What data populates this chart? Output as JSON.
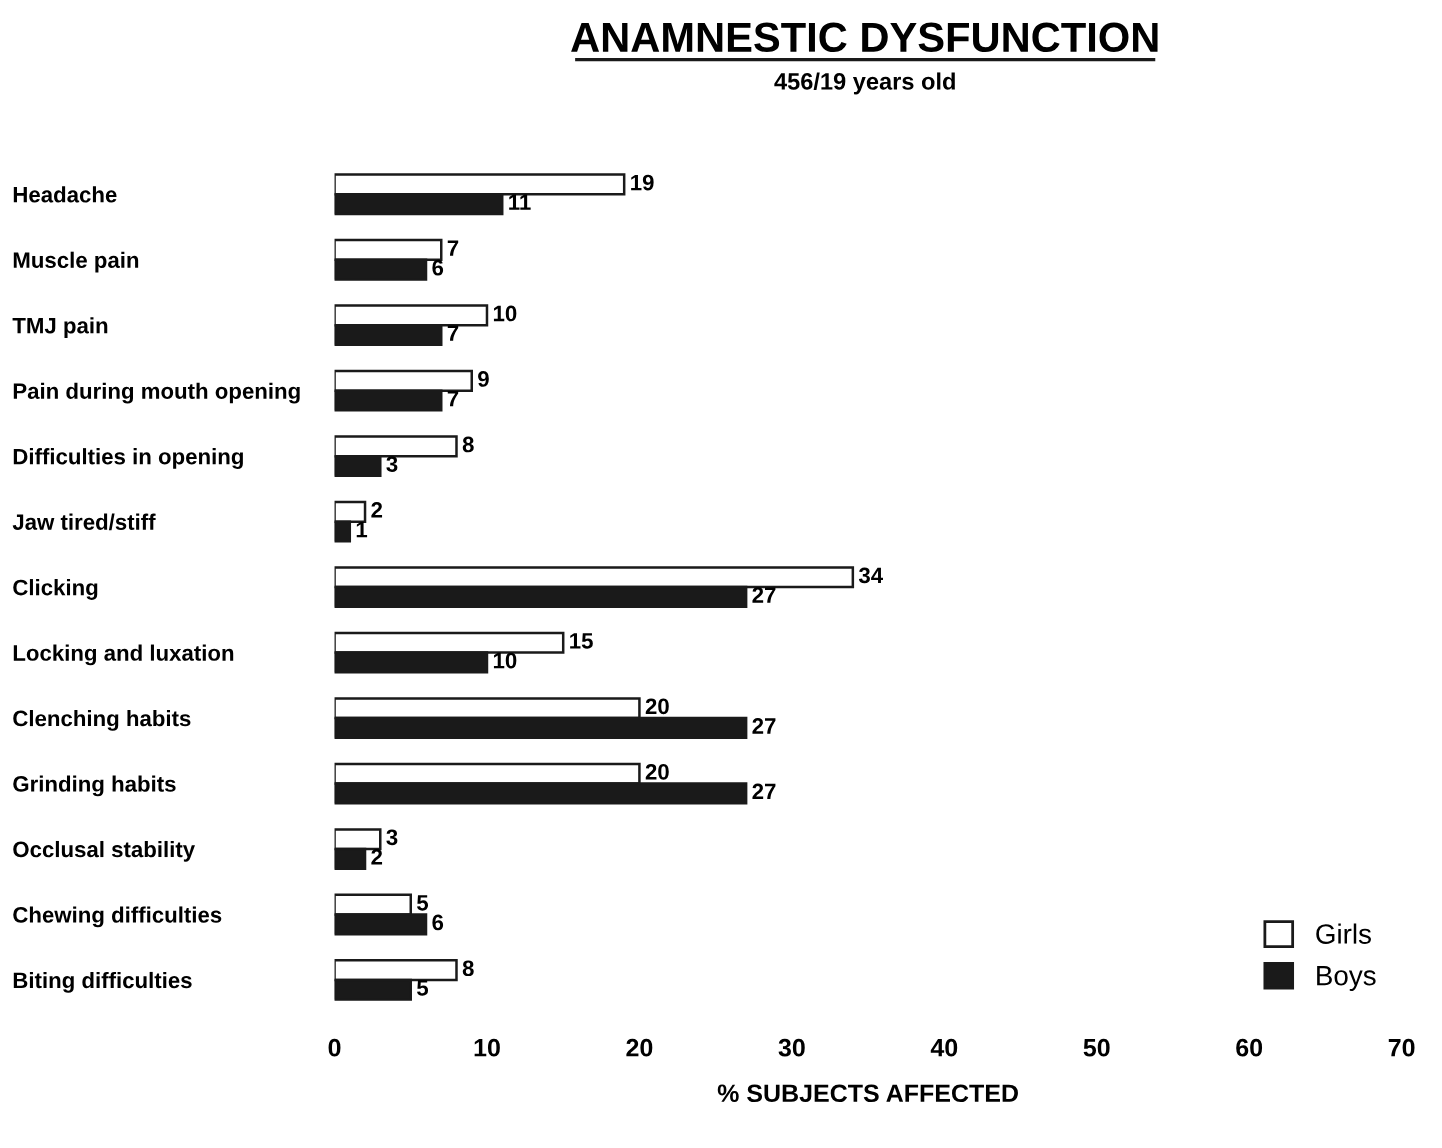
{
  "chart_data": {
    "type": "bar",
    "orientation": "horizontal",
    "title": "ANAMNESTIC DYSFUNCTION",
    "subtitle": "456/19 years old",
    "xlabel": "% SUBJECTS AFFECTED",
    "categories": [
      "Headache",
      "Muscle pain",
      "TMJ pain",
      "Pain during mouth opening",
      "Difficulties in opening",
      "Jaw tired/stiff",
      "Clicking",
      "Locking and luxation",
      "Clenching habits",
      "Grinding habits",
      "Occlusal stability",
      "Chewing difficulties",
      "Biting difficulties"
    ],
    "series": [
      {
        "name": "Girls",
        "color": "#ffffff",
        "values": [
          19,
          7,
          10,
          9,
          8,
          2,
          34,
          15,
          20,
          20,
          3,
          5,
          8
        ],
        "value_labels": [
          "19",
          "7",
          "10",
          "9",
          "8",
          "2",
          "34",
          "15",
          "20",
          "20",
          "3",
          "5",
          "8"
        ]
      },
      {
        "name": "Boys",
        "color": "#1a1a1a",
        "values": [
          11,
          6,
          7,
          7,
          3,
          1,
          27,
          10,
          27,
          27,
          2,
          6,
          5
        ],
        "value_labels": [
          "11",
          "6",
          "7",
          "7",
          "3",
          "1",
          "27",
          "10",
          "27",
          "27",
          "2",
          "6",
          "5"
        ]
      }
    ],
    "xlim": [
      0,
      70
    ],
    "xticks": [
      0,
      10,
      20,
      30,
      40,
      50,
      60,
      70
    ],
    "grid": false,
    "legend": "bottom right"
  }
}
